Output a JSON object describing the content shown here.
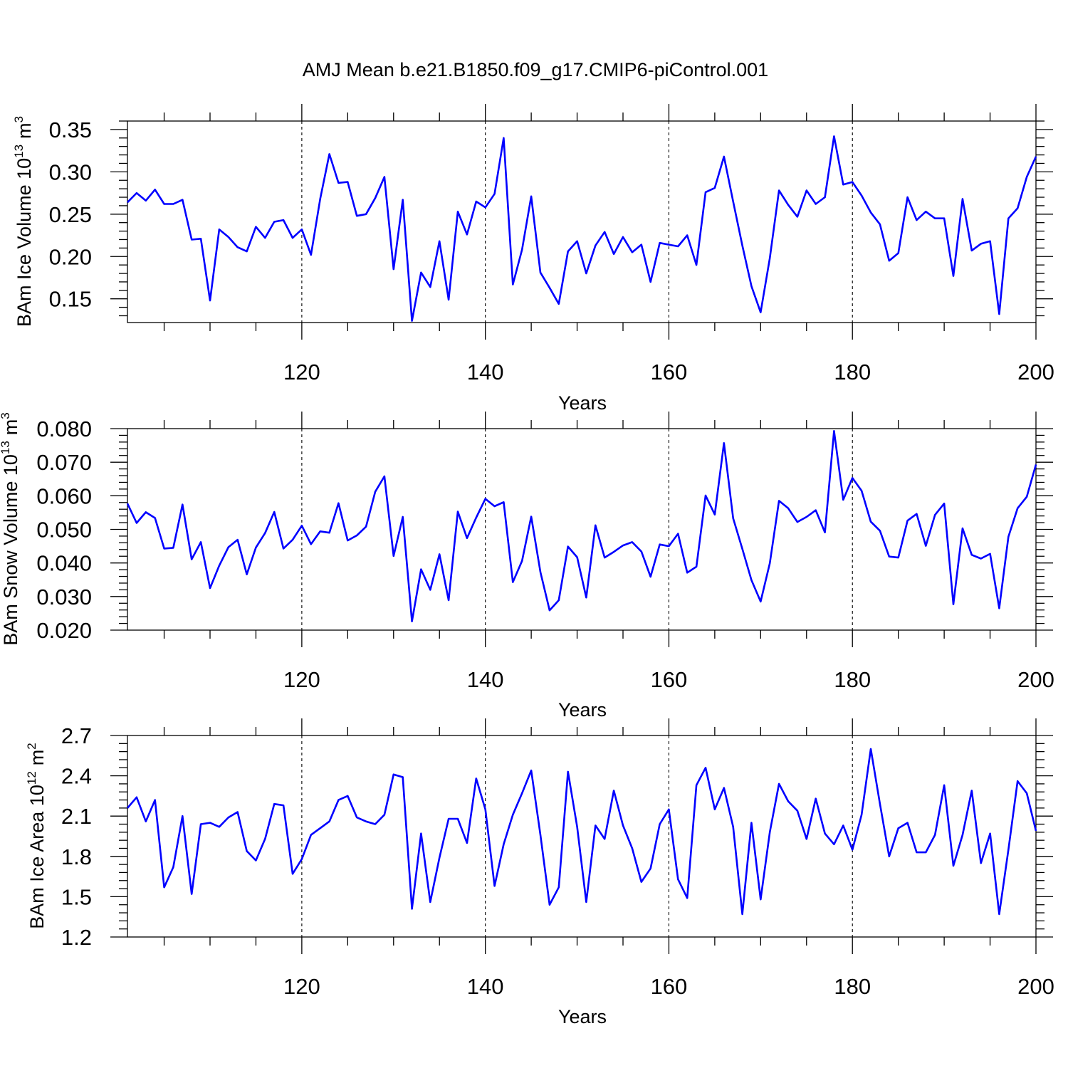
{
  "figure": {
    "title": "AMJ Mean b.e21.B1850.f09_g17.CMIP6-piControl.001",
    "line_color": "#0000ff"
  },
  "chart_data": [
    {
      "type": "line",
      "title": "AMJ Mean b.e21.B1850.f09_g17.CMIP6-piControl.001",
      "xlabel": "Years",
      "ylabel": "BAm Ice Volume 10",
      "ylabel_exp": "13",
      "ylabel_unit": "m",
      "ylabel_unit_exp": "3",
      "xlim": [
        101,
        200
      ],
      "ylim": [
        0.122,
        0.36
      ],
      "xticks": [
        120,
        140,
        160,
        180,
        200
      ],
      "xtick_labels": [
        "120",
        "140",
        "160",
        "180",
        "200"
      ],
      "yticks": [
        0.15,
        0.2,
        0.25,
        0.3,
        0.35
      ],
      "ytick_labels": [
        "0.15",
        "0.20",
        "0.25",
        "0.30",
        "0.35"
      ],
      "grid": "vertical dashed at major x ticks",
      "x_start": 101,
      "series": [
        {
          "name": "BAm Ice Volume",
          "values": [
            0.264,
            0.275,
            0.266,
            0.279,
            0.262,
            0.262,
            0.267,
            0.22,
            0.221,
            0.148,
            0.232,
            0.223,
            0.211,
            0.206,
            0.235,
            0.222,
            0.241,
            0.243,
            0.222,
            0.232,
            0.202,
            0.268,
            0.321,
            0.287,
            0.288,
            0.248,
            0.25,
            0.269,
            0.294,
            0.185,
            0.267,
            0.124,
            0.181,
            0.164,
            0.218,
            0.149,
            0.253,
            0.226,
            0.265,
            0.258,
            0.274,
            0.34,
            0.167,
            0.208,
            0.271,
            0.181,
            0.163,
            0.144,
            0.206,
            0.218,
            0.18,
            0.213,
            0.229,
            0.203,
            0.223,
            0.205,
            0.214,
            0.17,
            0.216,
            0.214,
            0.212,
            0.225,
            0.19,
            0.276,
            0.281,
            0.318,
            0.265,
            0.213,
            0.165,
            0.134,
            0.198,
            0.278,
            0.261,
            0.247,
            0.278,
            0.262,
            0.27,
            0.342,
            0.285,
            0.288,
            0.272,
            0.252,
            0.238,
            0.195,
            0.204,
            0.27,
            0.243,
            0.253,
            0.245,
            0.245,
            0.177,
            0.268,
            0.207,
            0.215,
            0.218,
            0.132,
            0.245,
            0.257,
            0.294,
            0.318
          ]
        }
      ]
    },
    {
      "type": "line",
      "xlabel": "Years",
      "ylabel": "BAm Snow Volume 10",
      "ylabel_exp": "13",
      "ylabel_unit": "m",
      "ylabel_unit_exp": "3",
      "xlim": [
        101,
        200
      ],
      "ylim": [
        0.02,
        0.08
      ],
      "xticks": [
        120,
        140,
        160,
        180,
        200
      ],
      "xtick_labels": [
        "120",
        "140",
        "160",
        "180",
        "200"
      ],
      "yticks": [
        0.02,
        0.03,
        0.04,
        0.05,
        0.06,
        0.07,
        0.08
      ],
      "ytick_labels": [
        "0.020",
        "0.030",
        "0.040",
        "0.050",
        "0.060",
        "0.070",
        "0.080"
      ],
      "grid": "vertical dashed at major x ticks",
      "x_start": 101,
      "series": [
        {
          "name": "BAm Snow Volume",
          "values": [
            0.0577,
            0.0519,
            0.0551,
            0.0534,
            0.0443,
            0.0445,
            0.0574,
            0.0411,
            0.0462,
            0.0325,
            0.0392,
            0.0447,
            0.0469,
            0.0366,
            0.0446,
            0.0489,
            0.0552,
            0.0443,
            0.0469,
            0.0511,
            0.0456,
            0.0494,
            0.049,
            0.0578,
            0.0467,
            0.0482,
            0.0508,
            0.0612,
            0.0658,
            0.0421,
            0.0537,
            0.0226,
            0.0381,
            0.032,
            0.0426,
            0.0289,
            0.0553,
            0.0474,
            0.0535,
            0.0591,
            0.0569,
            0.0581,
            0.0343,
            0.0406,
            0.0538,
            0.0373,
            0.0259,
            0.0289,
            0.0449,
            0.0417,
            0.0297,
            0.0512,
            0.0416,
            0.0433,
            0.0452,
            0.0462,
            0.0434,
            0.0359,
            0.0455,
            0.045,
            0.0487,
            0.0371,
            0.0389,
            0.0601,
            0.0544,
            0.0757,
            0.0533,
            0.0442,
            0.0349,
            0.0285,
            0.0399,
            0.0585,
            0.0563,
            0.0522,
            0.0537,
            0.0557,
            0.0491,
            0.0793,
            0.0588,
            0.0653,
            0.0615,
            0.0523,
            0.0496,
            0.0419,
            0.0416,
            0.0526,
            0.0546,
            0.0451,
            0.0543,
            0.0577,
            0.0277,
            0.0503,
            0.0424,
            0.0413,
            0.0427,
            0.0265,
            0.0478,
            0.0563,
            0.0597,
            0.0693
          ]
        }
      ]
    },
    {
      "type": "line",
      "xlabel": "Years",
      "ylabel": "BAm Ice Area 10",
      "ylabel_exp": "12",
      "ylabel_unit": "m",
      "ylabel_unit_exp": "2",
      "xlim": [
        101,
        200
      ],
      "ylim": [
        1.2,
        2.7
      ],
      "xticks": [
        120,
        140,
        160,
        180,
        200
      ],
      "xtick_labels": [
        "120",
        "140",
        "160",
        "180",
        "200"
      ],
      "yticks": [
        1.2,
        1.5,
        1.8,
        2.1,
        2.4,
        2.7
      ],
      "ytick_labels": [
        "1.2",
        "1.5",
        "1.8",
        "2.1",
        "2.4",
        "2.7"
      ],
      "grid": "vertical dashed at major x ticks",
      "x_start": 101,
      "series": [
        {
          "name": "BAm Ice Area",
          "values": [
            2.16,
            2.24,
            2.06,
            2.22,
            1.57,
            1.72,
            2.1,
            1.52,
            2.04,
            2.05,
            2.02,
            2.09,
            2.13,
            1.84,
            1.77,
            1.93,
            2.19,
            2.18,
            1.67,
            1.78,
            1.96,
            2.01,
            2.06,
            2.22,
            2.25,
            2.09,
            2.06,
            2.04,
            2.11,
            2.41,
            2.39,
            1.41,
            1.97,
            1.46,
            1.79,
            2.08,
            2.08,
            1.9,
            2.38,
            2.15,
            1.58,
            1.89,
            2.11,
            2.27,
            2.44,
            1.96,
            1.44,
            1.57,
            2.43,
            2.02,
            1.46,
            2.03,
            1.93,
            2.29,
            2.03,
            1.86,
            1.61,
            1.71,
            2.04,
            2.15,
            1.63,
            1.49,
            2.33,
            2.46,
            2.15,
            2.31,
            2.02,
            1.37,
            2.05,
            1.48,
            1.98,
            2.34,
            2.21,
            2.14,
            1.93,
            2.23,
            1.97,
            1.89,
            2.03,
            1.85,
            2.11,
            2.6,
            2.19,
            1.8,
            2.01,
            2.05,
            1.83,
            1.83,
            1.96,
            2.33,
            1.73,
            1.96,
            2.29,
            1.75,
            1.97,
            1.37,
            1.85,
            2.36,
            2.27,
            1.99
          ]
        }
      ]
    }
  ]
}
